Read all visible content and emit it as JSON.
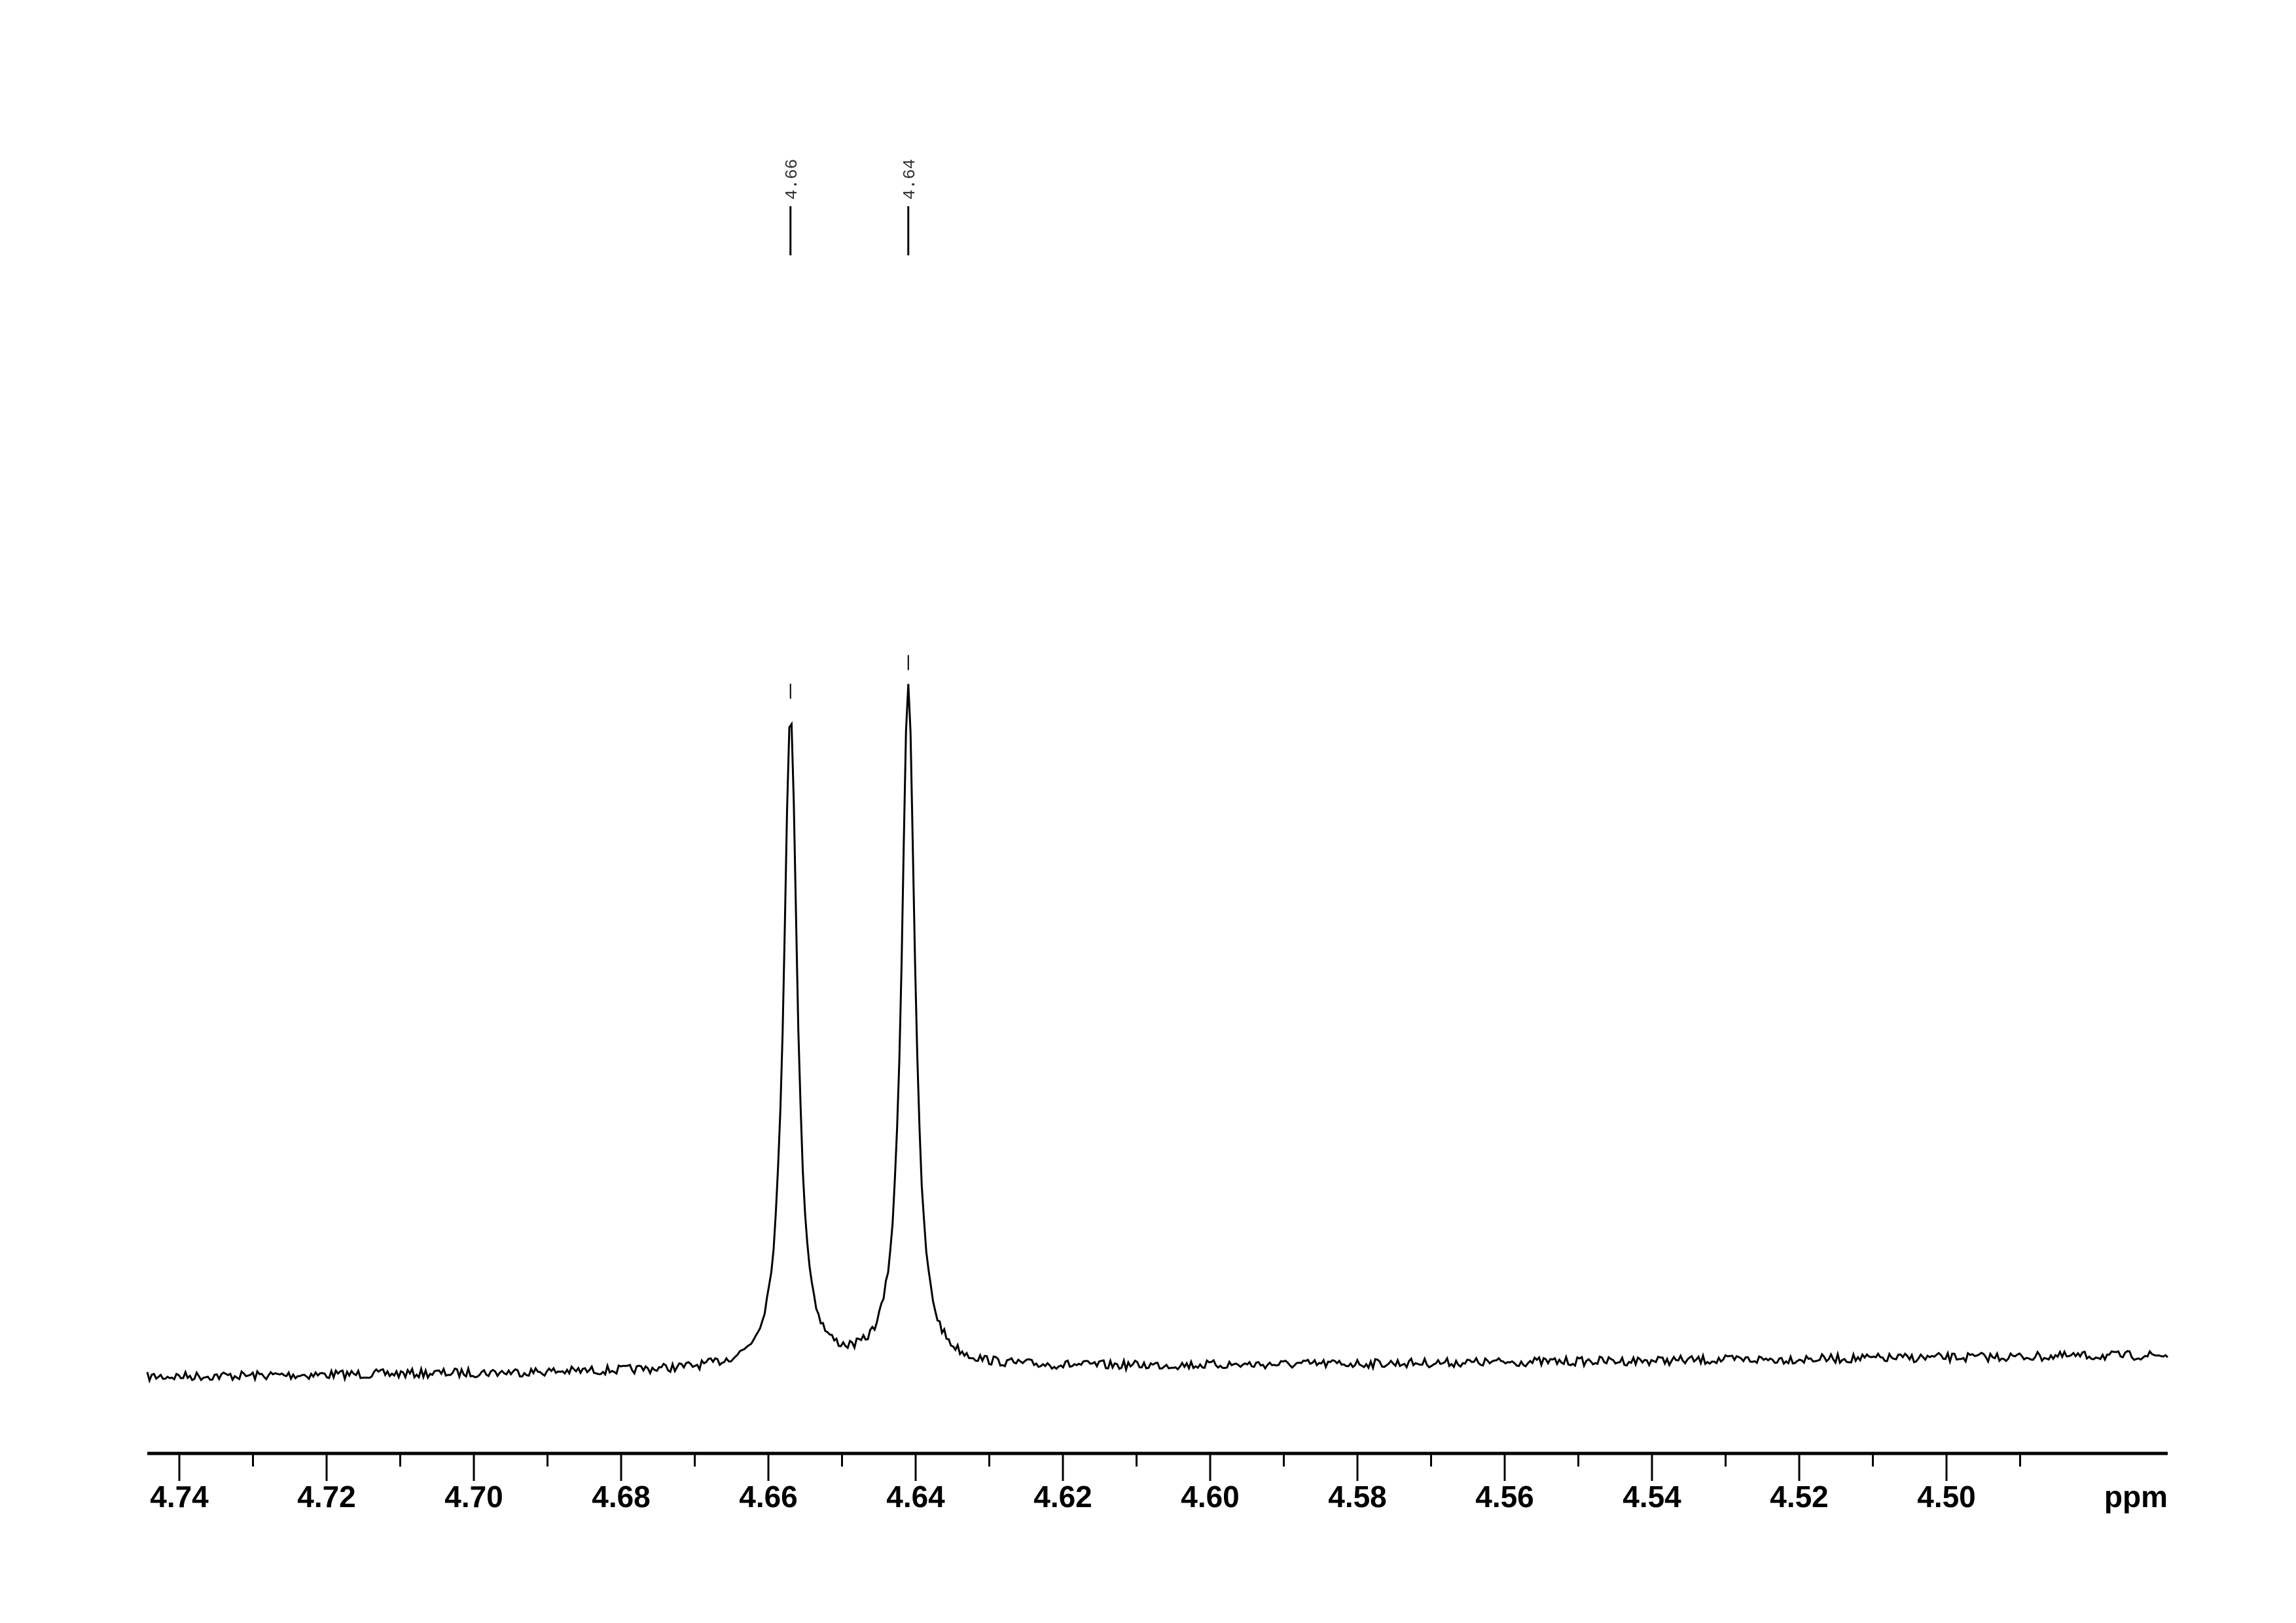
{
  "chart_data": {
    "type": "line",
    "title": "",
    "xlabel": "ppm",
    "ylabel": "",
    "xlim": [
      4.7438,
      4.4916
    ],
    "x_reversed": true,
    "grid": false,
    "line_color": "#000000",
    "x_ticks": [
      "4.74",
      "4.72",
      "4.70",
      "4.68",
      "4.66",
      "4.64",
      "4.62",
      "4.60",
      "4.58",
      "4.56",
      "4.54",
      "4.52",
      "4.50"
    ],
    "x_tick_values": [
      4.74,
      4.72,
      4.7,
      4.68,
      4.66,
      4.64,
      4.62,
      4.6,
      4.58,
      4.56,
      4.54,
      4.52,
      4.5
    ],
    "peaks": [
      {
        "ppm": 4.657,
        "label": "4.66",
        "relative_height": 0.96
      },
      {
        "ppm": 4.641,
        "label": "4.64",
        "relative_height": 1.0
      }
    ],
    "baseline": "noisy, slightly rising from left to right"
  }
}
